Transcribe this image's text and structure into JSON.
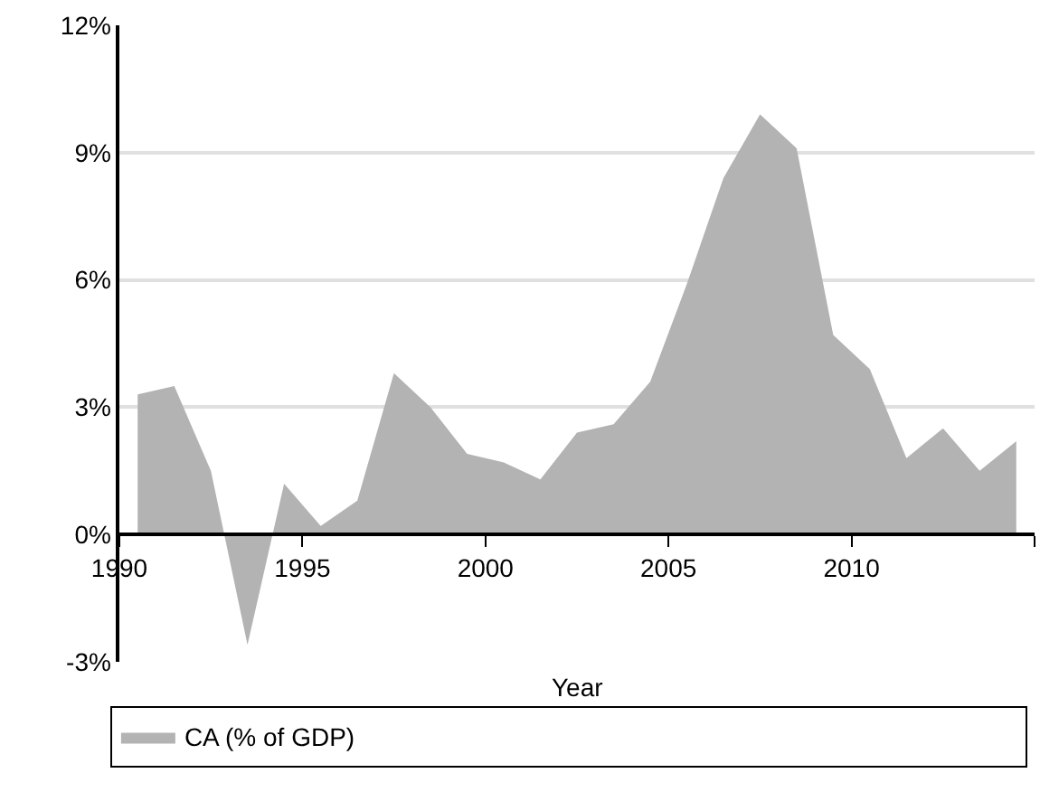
{
  "chart_data": {
    "type": "area",
    "xlabel": "Year",
    "legend": "bottom",
    "grid": "y",
    "x": [
      1990.5,
      1991.5,
      1992.5,
      1993.5,
      1994.5,
      1995.5,
      1996.5,
      1997.5,
      1998.5,
      1999.5,
      2000.5,
      2001.5,
      2002.5,
      2003.5,
      2004.5,
      2005.5,
      2006.5,
      2007.5,
      2008.5,
      2009.5,
      2010.5,
      2011.5,
      2012.5,
      2013.5,
      2014.5
    ],
    "series": [
      {
        "name": "CA (% of GDP)",
        "color": "#b3b3b3",
        "values": [
          3.3,
          3.5,
          1.5,
          -2.6,
          1.2,
          0.2,
          0.8,
          3.8,
          3.0,
          1.9,
          1.7,
          1.3,
          2.4,
          2.6,
          3.6,
          5.9,
          8.4,
          9.9,
          9.1,
          4.7,
          3.9,
          1.8,
          2.5,
          1.5,
          2.2
        ]
      }
    ],
    "xlim": [
      1990,
      2015
    ],
    "xticks": [
      1990,
      1995,
      2000,
      2005,
      2010,
      {
        "value": 2015,
        "label": null
      }
    ],
    "ylim": [
      -3,
      12
    ],
    "yticks": [
      {
        "value": -3,
        "label": "-3%"
      },
      {
        "value": 0,
        "label": "0%"
      },
      {
        "value": 3,
        "label": "3%"
      },
      {
        "value": 6,
        "label": "6%"
      },
      {
        "value": 9,
        "label": "9%"
      },
      {
        "value": 12,
        "label": "12%"
      }
    ]
  }
}
